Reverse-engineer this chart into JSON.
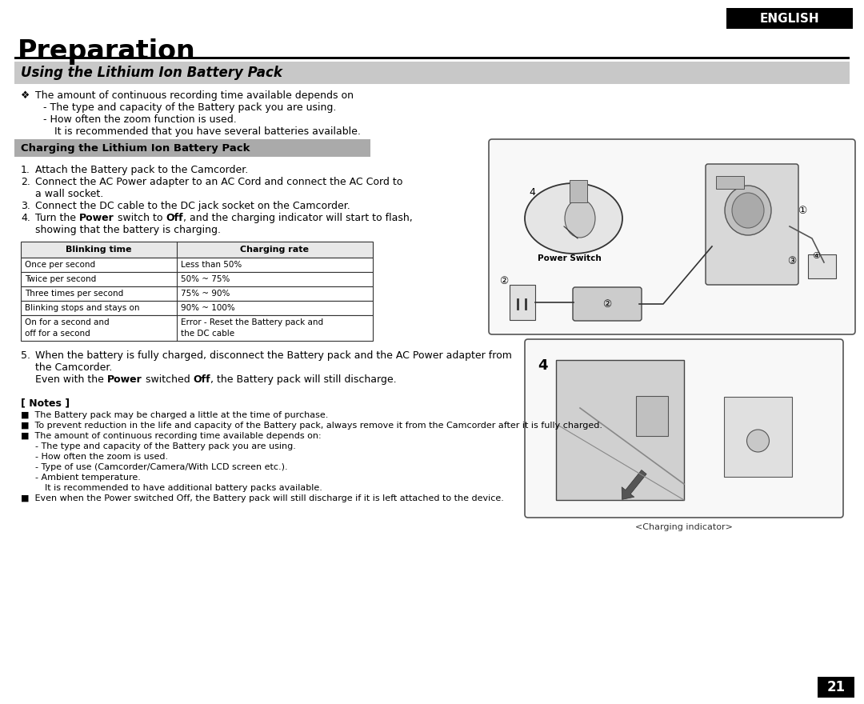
{
  "page_bg": "#ffffff",
  "title": "Preparation",
  "section_header": "Using the Lithium Ion Battery Pack",
  "section_header_bg": "#c8c8c8",
  "subsection_header": "Charging the Lithium Ion Battery Pack",
  "subsection_header_bg": "#aaaaaa",
  "english_label": "ENGLISH",
  "english_bg": "#000000",
  "english_color": "#ffffff",
  "page_number": "21",
  "page_number_bg": "#000000",
  "page_number_color": "#ffffff",
  "intro_bullet": "❖",
  "intro_line1": "The amount of continuous recording time available depends on",
  "intro_line2": "- The type and capacity of the Battery pack you are using.",
  "intro_line3": "- How often the zoom function is used.",
  "intro_line4": "It is recommended that you have several batteries available.",
  "step1": "Attach the Battery pack to the Camcorder.",
  "step2a": "Connect the AC Power adapter to an AC Cord and connect the AC Cord to",
  "step2b": "a wall socket.",
  "step3": "Connect the DC cable to the DC jack socket on the Camcorder.",
  "step4a": "Turn the ",
  "step4a_bold": "Power",
  "step4a2": " switch to ",
  "step4a2_bold": "Off",
  "step4a3": ", and the charging indicator will start to flash,",
  "step4b": "showing that the battery is charging.",
  "table_headers": [
    "Blinking time",
    "Charging rate"
  ],
  "table_rows": [
    [
      "Once per second",
      "Less than 50%"
    ],
    [
      "Twice per second",
      "50% ~ 75%"
    ],
    [
      "Three times per second",
      "75% ~ 90%"
    ],
    [
      "Blinking stops and stays on",
      "90% ~ 100%"
    ],
    [
      "On for a second and\noff for a second",
      "Error - Reset the Battery pack and\nthe DC cable"
    ]
  ],
  "step5a": "When the battery is fully charged, disconnect the Battery pack and the AC Power adapter from",
  "step5b": "the Camcorder.",
  "step5c1": "Even with the ",
  "step5c_bold": "Power",
  "step5c2": " switched ",
  "step5c_bold2": "Off",
  "step5c3": ", the Battery pack will still discharge.",
  "notes_header": "[ Notes ]",
  "note1": "The Battery pack may be charged a little at the time of purchase.",
  "note2": "To prevent reduction in the life and capacity of the Battery pack, always remove it from the Camcorder after it is fully charged.",
  "note3": "The amount of continuous recording time available depends on:",
  "note3a": "- The type and capacity of the Battery pack you are using.",
  "note3b": "- How often the zoom is used.",
  "note3c": "- Type of use (Camcorder/Camera/With LCD screen etc.).",
  "note3d": "- Ambient temperature.",
  "note3e": "It is recommended to have additional battery packs available.",
  "note4": "Even when the Power switched Off, the Battery pack will still discharge if it is left attached to the device.",
  "charging_indicator_label": "<Charging indicator>",
  "power_switch_label": "Power Switch"
}
